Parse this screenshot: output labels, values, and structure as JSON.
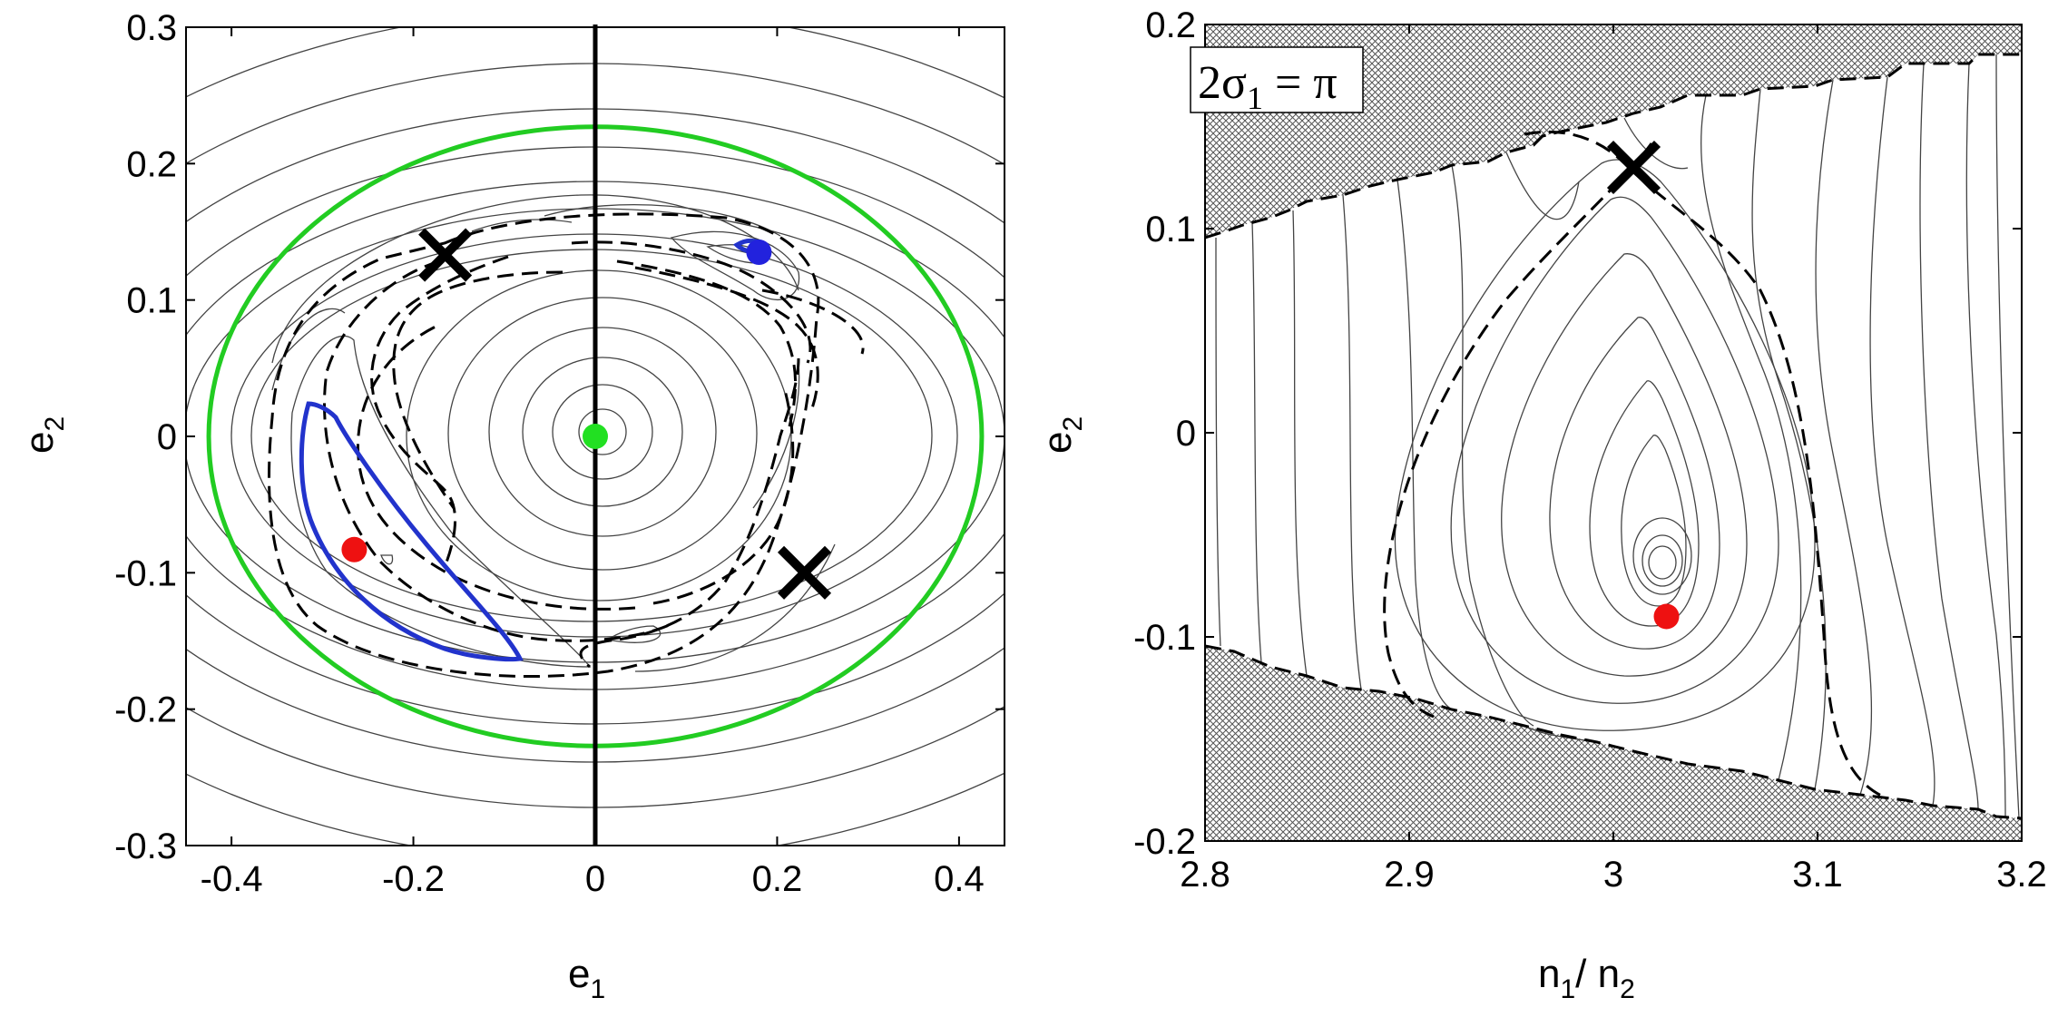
{
  "chart_data": [
    {
      "type": "contour",
      "xlabel": {
        "main": "e",
        "sub": "1"
      },
      "ylabel": {
        "main": "e",
        "sub": "2"
      },
      "xlim": [
        -0.45,
        0.45
      ],
      "ylim": [
        -0.3,
        0.3
      ],
      "xticks": [
        -0.4,
        -0.2,
        0,
        0.2,
        0.4
      ],
      "yticks": [
        -0.3,
        -0.2,
        -0.1,
        0,
        0.1,
        0.2,
        0.3
      ],
      "xtick_labels": [
        "-0.4",
        "-0.2",
        "0",
        "0.2",
        "0.4"
      ],
      "ytick_labels": [
        "-0.3",
        "-0.2",
        "-0.1",
        "0",
        "0.1",
        "0.2",
        "0.3"
      ],
      "grid": false,
      "vertical_line_x": 0,
      "points": [
        {
          "x": 0.0,
          "y": 0.0,
          "color": "#22e022",
          "marker": "dot"
        },
        {
          "x": 0.18,
          "y": 0.135,
          "color": "#2222dd",
          "marker": "dot"
        },
        {
          "x": -0.265,
          "y": -0.083,
          "color": "#ee1111",
          "marker": "dot"
        },
        {
          "x": -0.165,
          "y": 0.133,
          "color": "#000000",
          "marker": "x"
        },
        {
          "x": 0.23,
          "y": -0.1,
          "color": "#000000",
          "marker": "x"
        }
      ],
      "curves": [
        {
          "kind": "ellipse",
          "color": "#22cc22",
          "cx": 0.0,
          "cy": 0.0,
          "a": 0.425,
          "b": 0.227
        }
      ],
      "colors": {
        "green": "#22cc22",
        "blue": "#2233cc",
        "red": "#ee1111"
      }
    },
    {
      "type": "contour",
      "xlabel": {
        "main": "n",
        "sub": "1",
        "mid": "/ n",
        "sub2": "2"
      },
      "ylabel": {
        "main": "e",
        "sub": "2"
      },
      "xlim": [
        2.8,
        3.2
      ],
      "ylim": [
        -0.2,
        0.2
      ],
      "xticks": [
        2.8,
        2.9,
        3.0,
        3.1,
        3.2
      ],
      "yticks": [
        -0.2,
        -0.1,
        0,
        0.1,
        0.2
      ],
      "xtick_labels": [
        "2.8",
        "2.9",
        "3",
        "3.1",
        "3.2"
      ],
      "ytick_labels": [
        "-0.2",
        "-0.1",
        "0",
        "0.1",
        "0.2"
      ],
      "grid": false,
      "annotation": {
        "a": "2σ",
        "sub": "1",
        "b": " = π"
      },
      "points": [
        {
          "x": 3.026,
          "y": -0.09,
          "color": "#ee1111",
          "marker": "dot"
        },
        {
          "x": 3.01,
          "y": 0.13,
          "color": "#000000",
          "marker": "x"
        }
      ],
      "hatched_regions": [
        "top",
        "bottom"
      ]
    }
  ]
}
